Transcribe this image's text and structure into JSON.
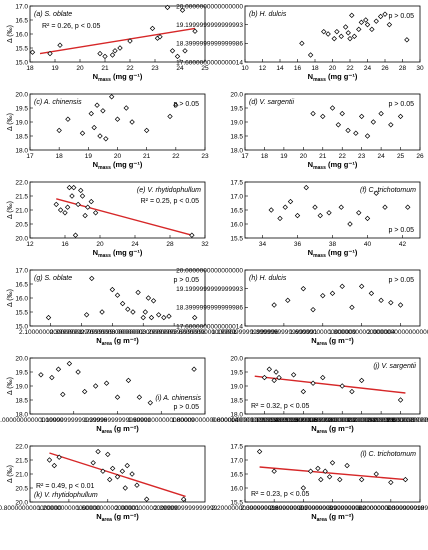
{
  "figure": {
    "colors": {
      "marker": "#000000",
      "fit_line": "#d62728",
      "frame": "#000000"
    }
  },
  "chart_data": [
    {
      "id": "a",
      "type": "scatter",
      "label": "(a) S. oblate",
      "annotation": "R² = 0.26, p < 0.05",
      "annotation_loc": "upper-left",
      "label_loc": "upper-left",
      "xlabel": "N_mass (mg g⁻¹)",
      "ylabel": "Δ (‰)",
      "xlim": [
        18,
        25
      ],
      "xticks": [
        18,
        19,
        20,
        21,
        22,
        23,
        24,
        25
      ],
      "ylim": [
        15.0,
        17.0
      ],
      "yticks": [
        15.0,
        15.5,
        16.0,
        16.5,
        17.0
      ],
      "x": [
        18.1,
        18.8,
        19.2,
        20.8,
        21.0,
        21.3,
        21.4,
        21.6,
        22.0,
        22.9,
        23.1,
        23.2,
        23.5,
        23.7,
        23.9,
        24.1,
        24.2,
        24.6
      ],
      "y": [
        15.35,
        15.3,
        15.6,
        15.3,
        15.2,
        15.25,
        15.4,
        15.5,
        15.75,
        16.2,
        15.85,
        15.9,
        16.95,
        15.4,
        15.2,
        16.85,
        15.4,
        16.1
      ],
      "fit": [
        [
          18.4,
          15.3
        ],
        [
          24.6,
          16.2
        ]
      ]
    },
    {
      "id": "b",
      "type": "scatter",
      "label": "(b) H. dulcis",
      "annotation": "p > 0.05",
      "annotation_loc": "upper-right",
      "label_loc": "upper-left",
      "xlabel": "N_mass (mg g⁻¹)",
      "ylabel": "",
      "xlim": [
        10,
        30
      ],
      "xticks": [
        10,
        12,
        14,
        16,
        18,
        20,
        22,
        24,
        26,
        28,
        30
      ],
      "ylim": [
        17.6,
        20.0
      ],
      "yticks": [
        17.6,
        18.4,
        19.2,
        20.0
      ],
      "x": [
        16.5,
        17.5,
        19.0,
        19.5,
        20.2,
        20.5,
        21.0,
        21.5,
        21.8,
        22.0,
        22.2,
        22.5,
        23.0,
        23.3,
        23.8,
        24.0,
        24.5,
        25.0,
        25.5,
        26.0,
        26.5,
        28.5
      ],
      "y": [
        18.4,
        17.9,
        18.9,
        18.8,
        18.6,
        18.9,
        18.7,
        19.1,
        18.85,
        18.6,
        19.6,
        18.7,
        19.0,
        19.3,
        19.4,
        19.2,
        19.0,
        19.35,
        19.55,
        19.65,
        19.2,
        18.55
      ],
      "fit": []
    },
    {
      "id": "c",
      "type": "scatter",
      "label": "(c) A. chinensis",
      "annotation": "p > 0.05",
      "annotation_loc": "upper-right",
      "label_loc": "upper-left",
      "xlabel": "N_mass (mg g⁻¹)",
      "ylabel": "Δ (‰)",
      "xlim": [
        17,
        23
      ],
      "xticks": [
        17,
        18,
        19,
        20,
        21,
        22,
        23
      ],
      "ylim": [
        18.0,
        20.0
      ],
      "yticks": [
        18.0,
        18.5,
        19.0,
        19.5,
        20.0
      ],
      "x": [
        18.0,
        18.3,
        18.8,
        19.1,
        19.2,
        19.3,
        19.4,
        19.5,
        19.6,
        19.8,
        20.0,
        20.3,
        20.5,
        21.0,
        21.8,
        22.0
      ],
      "y": [
        18.7,
        19.1,
        18.6,
        19.3,
        18.8,
        19.6,
        18.5,
        19.4,
        18.4,
        19.9,
        19.1,
        19.5,
        19.0,
        18.7,
        19.2,
        19.6
      ],
      "fit": []
    },
    {
      "id": "d",
      "type": "scatter",
      "label": "(d) V. sargentii",
      "annotation": "p > 0.05",
      "annotation_loc": "upper-right",
      "label_loc": "upper-left",
      "xlabel": "N_mass (mg g⁻¹)",
      "ylabel": "",
      "xlim": [
        17,
        26
      ],
      "xticks": [
        17,
        18,
        19,
        20,
        21,
        22,
        23,
        24,
        25,
        26
      ],
      "ylim": [
        18.0,
        20.0
      ],
      "yticks": [
        18.0,
        18.5,
        19.0,
        19.5,
        20.0
      ],
      "x": [
        20.5,
        21.0,
        21.5,
        21.8,
        22.0,
        22.3,
        22.7,
        23.0,
        23.3,
        23.6,
        24.0,
        24.5,
        25.0
      ],
      "y": [
        19.3,
        19.2,
        19.5,
        18.9,
        19.3,
        18.7,
        18.6,
        19.2,
        18.5,
        19.0,
        19.3,
        18.9,
        19.2
      ],
      "fit": []
    },
    {
      "id": "e",
      "type": "scatter",
      "label": "(e) V. rhytidophullum",
      "annotation": "R² = 0.25, p < 0.05",
      "annotation_loc": "upper-right",
      "label_loc": "upper-right",
      "xlabel": "N_mass (mg g⁻¹)",
      "ylabel": "Δ (‰)",
      "xlim": [
        12,
        32
      ],
      "xticks": [
        12,
        16,
        20,
        24,
        28,
        32
      ],
      "ylim": [
        20.0,
        22.0
      ],
      "yticks": [
        20.0,
        20.5,
        21.0,
        21.5,
        22.0
      ],
      "x": [
        15.0,
        15.5,
        16.0,
        16.3,
        16.5,
        16.8,
        17.0,
        17.2,
        17.5,
        17.8,
        18.0,
        18.3,
        18.6,
        19.0,
        19.5,
        30.5
      ],
      "y": [
        21.2,
        21.0,
        20.9,
        21.1,
        21.8,
        21.5,
        21.8,
        20.1,
        21.2,
        21.7,
        21.5,
        20.8,
        21.1,
        21.3,
        20.9,
        20.1
      ],
      "fit": [
        [
          15.0,
          21.4
        ],
        [
          30.5,
          20.1
        ]
      ]
    },
    {
      "id": "f",
      "type": "scatter",
      "label": "(f) C. trichotomum",
      "annotation": "p > 0.05",
      "annotation_loc": "lower-right",
      "label_loc": "upper-right",
      "xlabel": "N_mass (mg g⁻¹)",
      "ylabel": "",
      "xlim": [
        33,
        43
      ],
      "xticks": [
        34,
        36,
        38,
        40,
        42
      ],
      "ylim": [
        15.5,
        17.5
      ],
      "yticks": [
        15.5,
        16.0,
        16.5,
        17.0,
        17.5
      ],
      "x": [
        34.5,
        35.0,
        35.3,
        35.6,
        36.0,
        36.5,
        37.0,
        37.3,
        37.8,
        38.5,
        39.0,
        39.5,
        40.0,
        40.5,
        41.0,
        42.3
      ],
      "y": [
        16.5,
        16.2,
        16.6,
        16.8,
        16.3,
        17.3,
        16.6,
        16.3,
        16.4,
        16.6,
        16.0,
        16.4,
        16.2,
        17.1,
        16.6,
        16.6
      ],
      "fit": []
    },
    {
      "id": "g",
      "type": "scatter",
      "label": "(g) S. oblate",
      "annotation": "p > 0.05",
      "annotation_loc": "upper-right",
      "label_loc": "upper-left",
      "xlabel": "N_area (g m⁻²)",
      "ylabel": "Δ (‰)",
      "xlim": [
        1.9,
        3.6
      ],
      "xticks": [
        2.1,
        2.4,
        2.7,
        3.0,
        3.3,
        3.6
      ],
      "ylim": [
        15.0,
        17.0
      ],
      "yticks": [
        15.0,
        15.5,
        16.0,
        16.5,
        17.0
      ],
      "x": [
        2.08,
        2.45,
        2.5,
        2.6,
        2.7,
        2.75,
        2.8,
        2.85,
        2.9,
        2.95,
        3.0,
        3.02,
        3.05,
        3.08,
        3.1,
        3.15,
        3.2,
        3.25,
        3.5
      ],
      "y": [
        15.3,
        15.4,
        16.7,
        15.5,
        16.3,
        16.1,
        15.8,
        15.6,
        15.5,
        16.2,
        15.3,
        15.5,
        16.0,
        15.3,
        15.9,
        15.4,
        15.3,
        15.35,
        15.3
      ],
      "fit": []
    },
    {
      "id": "h",
      "type": "scatter",
      "label": "(h) H. dulcis",
      "annotation": "p > 0.05",
      "annotation_loc": "upper-right",
      "label_loc": "upper-left",
      "xlabel": "N_area (g m⁻²)",
      "ylabel": "",
      "xlim": [
        1.2,
        2.1
      ],
      "xticks": [
        1.2,
        1.4,
        1.6,
        1.8,
        2.0
      ],
      "ylim": [
        17.6,
        20.0
      ],
      "yticks": [
        17.6,
        18.4,
        19.2,
        20.0
      ],
      "x": [
        1.35,
        1.42,
        1.5,
        1.55,
        1.6,
        1.65,
        1.7,
        1.75,
        1.8,
        1.85,
        1.9,
        1.95,
        2.0
      ],
      "y": [
        18.5,
        18.7,
        19.2,
        18.3,
        18.9,
        19.0,
        19.3,
        18.4,
        19.3,
        19.0,
        18.7,
        18.6,
        18.5
      ],
      "fit": []
    },
    {
      "id": "i",
      "type": "scatter",
      "label": "(i) A. chinensis",
      "annotation": "p > 0.05",
      "annotation_loc": "lower-right",
      "label_loc": "lower-right",
      "xlabel": "N_area (g m⁻²)",
      "ylabel": "Δ (‰)",
      "xlim": [
        1.0,
        1.8
      ],
      "xticks": [
        1.0,
        1.2,
        1.4,
        1.6,
        1.8
      ],
      "ylim": [
        18.0,
        20.0
      ],
      "yticks": [
        18.0,
        18.5,
        19.0,
        19.5,
        20.0
      ],
      "x": [
        1.05,
        1.1,
        1.13,
        1.15,
        1.18,
        1.22,
        1.25,
        1.3,
        1.35,
        1.4,
        1.45,
        1.5,
        1.55,
        1.75
      ],
      "y": [
        19.4,
        19.3,
        19.6,
        18.7,
        19.8,
        19.5,
        18.8,
        19.0,
        19.1,
        18.6,
        19.2,
        18.6,
        18.4,
        19.6
      ],
      "fit": []
    },
    {
      "id": "j",
      "type": "scatter",
      "label": "(j) V. sargentii",
      "annotation": "R² = 0.32, p < 0.05",
      "annotation_loc": "lower-left",
      "label_loc": "upper-right",
      "xlabel": "N_area (g m⁻²)",
      "ylabel": "",
      "xlim": [
        0.8,
        2.6
      ],
      "xticks": [
        0.8,
        1.0,
        1.2,
        1.4,
        1.6,
        1.8,
        2.0,
        2.2,
        2.4,
        2.6
      ],
      "ylim": [
        18.0,
        20.0
      ],
      "yticks": [
        18.0,
        18.5,
        19.0,
        19.5,
        20.0
      ],
      "x": [
        1.0,
        1.05,
        1.1,
        1.12,
        1.15,
        1.3,
        1.4,
        1.5,
        1.6,
        1.8,
        1.9,
        2.0,
        2.4
      ],
      "y": [
        19.3,
        19.6,
        19.2,
        19.5,
        19.3,
        19.4,
        18.8,
        19.1,
        19.3,
        19.0,
        18.8,
        19.2,
        18.5
      ],
      "fit": [
        [
          0.9,
          19.35
        ],
        [
          2.45,
          18.75
        ]
      ]
    },
    {
      "id": "k",
      "type": "scatter",
      "label": "(k) V. rhytidophullum",
      "annotation": "R² = 0.49, p < 0.01",
      "annotation_loc": "lower-left",
      "label_loc": "lower-left",
      "xlabel": "N_area (g m⁻²)",
      "ylabel": "Δ (‰)",
      "xlim": [
        0.8,
        2.6
      ],
      "xticks": [
        0.8,
        1.2,
        1.6,
        2.0,
        2.4
      ],
      "ylim": [
        20.0,
        22.0
      ],
      "yticks": [
        20.0,
        20.5,
        21.0,
        21.5,
        22.0
      ],
      "x": [
        1.0,
        1.05,
        1.1,
        1.45,
        1.5,
        1.55,
        1.6,
        1.62,
        1.65,
        1.7,
        1.75,
        1.78,
        1.8,
        1.85,
        1.9,
        2.0,
        2.38
      ],
      "y": [
        21.5,
        21.3,
        21.6,
        21.4,
        21.8,
        21.1,
        21.7,
        20.8,
        21.2,
        20.9,
        21.1,
        20.5,
        21.3,
        21.0,
        20.6,
        20.1,
        20.1
      ],
      "fit": [
        [
          1.0,
          21.75
        ],
        [
          2.4,
          20.2
        ]
      ]
    },
    {
      "id": "l",
      "type": "scatter",
      "label": "(l) C. trichotomum",
      "annotation": "R² = 0.23, p < 0.05",
      "annotation_loc": "lower-left",
      "label_loc": "upper-right",
      "xlabel": "N_area (g m⁻²)",
      "ylabel": "",
      "xlim": [
        2.2,
        3.4
      ],
      "xticks": [
        2.2,
        2.4,
        2.6,
        2.8,
        3.0,
        3.2,
        3.4
      ],
      "ylim": [
        15.5,
        17.5
      ],
      "yticks": [
        15.5,
        16.0,
        16.5,
        17.0,
        17.5
      ],
      "x": [
        2.3,
        2.4,
        2.6,
        2.65,
        2.7,
        2.72,
        2.75,
        2.78,
        2.8,
        2.85,
        2.9,
        3.0,
        3.1,
        3.2,
        3.3
      ],
      "y": [
        17.3,
        16.6,
        16.0,
        16.6,
        16.7,
        16.3,
        16.6,
        16.4,
        16.9,
        16.3,
        16.8,
        16.3,
        16.5,
        16.2,
        16.3
      ],
      "fit": [
        [
          2.3,
          16.75
        ],
        [
          3.3,
          16.3
        ]
      ]
    }
  ]
}
